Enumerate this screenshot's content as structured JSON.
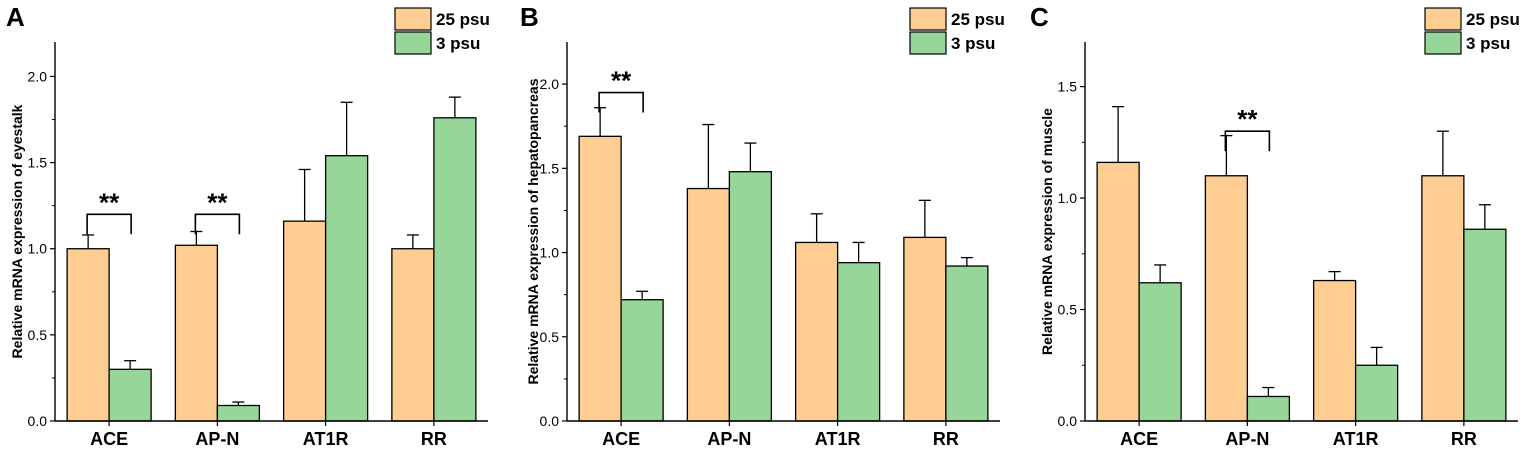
{
  "colors": {
    "series_25": "#fdcd92",
    "series_3": "#97d699",
    "stroke": "#000000"
  },
  "chart_data": [
    {
      "type": "bar",
      "panel": "A",
      "ylabel": "Relative mRNA expression of eyestalk",
      "ylim": [
        0,
        2.2
      ],
      "yticks": [
        0.0,
        0.5,
        1.0,
        1.5,
        2.0
      ],
      "ytick_labels": [
        "0.0",
        "0.5",
        "1.0",
        "1.5",
        "2.0"
      ],
      "categories": [
        "ACE",
        "AP-N",
        "AT1R",
        "RR"
      ],
      "series": [
        {
          "name": "25 psu",
          "values": [
            1.0,
            1.02,
            1.16,
            1.0
          ],
          "errors": [
            0.08,
            0.08,
            0.3,
            0.08
          ]
        },
        {
          "name": "3 psu",
          "values": [
            0.3,
            0.09,
            1.54,
            1.76
          ],
          "errors": [
            0.05,
            0.02,
            0.31,
            0.12
          ]
        }
      ],
      "annotations": [
        {
          "text": "**",
          "category_index": 0,
          "y": 1.2
        },
        {
          "text": "**",
          "category_index": 1,
          "y": 1.2
        }
      ]
    },
    {
      "type": "bar",
      "panel": "B",
      "ylabel": "Relative mRNA expression of hepatopancreas",
      "ylim": [
        0,
        2.25
      ],
      "yticks": [
        0.0,
        0.5,
        1.0,
        1.5,
        2.0
      ],
      "ytick_labels": [
        "0.0",
        "0.5",
        "1.0",
        "1.5",
        "2.0"
      ],
      "categories": [
        "ACE",
        "AP-N",
        "AT1R",
        "RR"
      ],
      "series": [
        {
          "name": "25 psu",
          "values": [
            1.69,
            1.38,
            1.06,
            1.09
          ],
          "errors": [
            0.17,
            0.38,
            0.17,
            0.22
          ]
        },
        {
          "name": "3 psu",
          "values": [
            0.72,
            1.48,
            0.94,
            0.92
          ],
          "errors": [
            0.05,
            0.17,
            0.12,
            0.05
          ]
        }
      ],
      "annotations": [
        {
          "text": "**",
          "category_index": 0,
          "y": 1.95
        }
      ]
    },
    {
      "type": "bar",
      "panel": "C",
      "ylabel": "Relative mRNA expression of muscle",
      "ylim": [
        0,
        1.7
      ],
      "yticks": [
        0.0,
        0.5,
        1.0,
        1.5
      ],
      "ytick_labels": [
        "0.0",
        "0.5",
        "1.0",
        "1.5"
      ],
      "categories": [
        "ACE",
        "AP-N",
        "AT1R",
        "RR"
      ],
      "series": [
        {
          "name": "25 psu",
          "values": [
            1.16,
            1.1,
            0.63,
            1.1
          ],
          "errors": [
            0.25,
            0.18,
            0.04,
            0.2
          ]
        },
        {
          "name": "3 psu",
          "values": [
            0.62,
            0.11,
            0.25,
            0.86
          ],
          "errors": [
            0.08,
            0.04,
            0.08,
            0.11
          ]
        }
      ],
      "annotations": [
        {
          "text": "**",
          "category_index": 1,
          "y": 1.3
        }
      ]
    }
  ]
}
